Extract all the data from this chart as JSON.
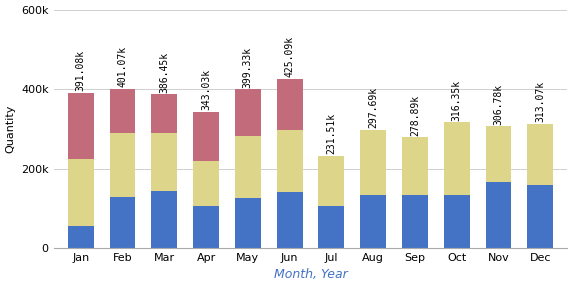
{
  "months": [
    "Jan",
    "Feb",
    "Mar",
    "Apr",
    "May",
    "Jun",
    "Jul",
    "Aug",
    "Sep",
    "Oct",
    "Nov",
    "Dec"
  ],
  "totals": [
    391080,
    401070,
    386450,
    343030,
    399330,
    425090,
    231510,
    297690,
    278890,
    316350,
    306780,
    313070
  ],
  "blue": [
    55000,
    128000,
    143000,
    105000,
    127000,
    140000,
    105000,
    133000,
    133000,
    133000,
    165000,
    158000
  ],
  "yellow": [
    170000,
    162000,
    147000,
    113000,
    155000,
    158000,
    126510,
    164690,
    145890,
    183350,
    141780,
    155070
  ],
  "pink": [
    166080,
    111070,
    96450,
    125030,
    117330,
    127090,
    0,
    0,
    0,
    0,
    0,
    0
  ],
  "color_blue": "#4472C4",
  "color_yellow": "#DDD68A",
  "color_pink": "#C26B7A",
  "xlabel": "Month, Year",
  "ylabel": "Quantity",
  "ylim": [
    0,
    600000
  ],
  "yticks": [
    0,
    200000,
    400000,
    600000
  ],
  "background_color": "#FFFFFF",
  "grid_color": "#C8C8C8",
  "label_fontsize": 7,
  "axis_fontsize": 8,
  "xlabel_fontsize": 9
}
